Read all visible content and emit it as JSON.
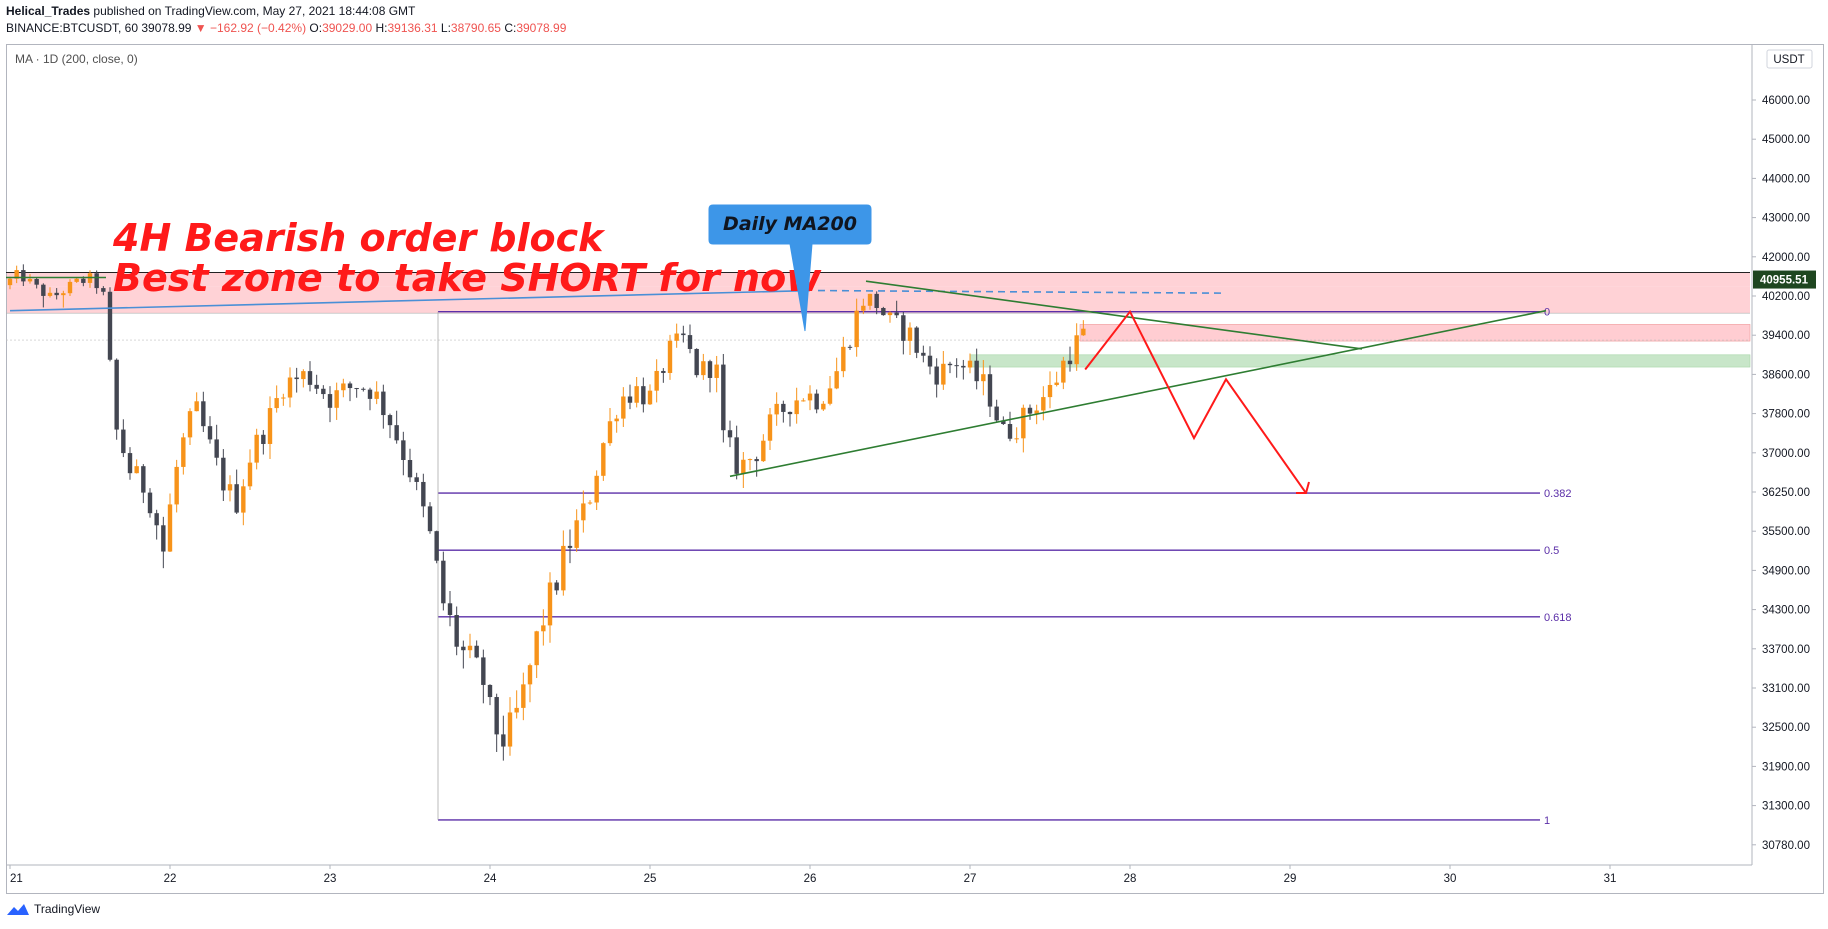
{
  "header": {
    "author": "Helical_Trades",
    "published_text": " published on TradingView.com, May 27, 2021 18:44:08 GMT",
    "symbol": "BINANCE:BTCUSDT, 60",
    "last": "39078.99",
    "change": "▼ −162.92 (−0.42%)",
    "o_label": "O:",
    "o_value": "39029.00",
    "h_label": "H:",
    "h_value": "39136.31",
    "l_label": "L:",
    "l_value": "38790.65",
    "c_label": "C:",
    "c_value": "39078.99"
  },
  "indicator_legend": "MA · 1D (200, close, 0)",
  "currency_badge": "USDT",
  "footer": {
    "brand": "TradingView"
  },
  "colors": {
    "up": "#f7931a",
    "down": "#434651",
    "fib": "#5b2fa8",
    "triangle": "#2e7d32",
    "ma": "#4a8fd6",
    "zone": "#ffcdd2",
    "zone_green": "#c8e6c9",
    "projection": "#ff1a1a",
    "price_badge": "#1e4620"
  },
  "annotations": {
    "line1": "4H Bearish order block",
    "line2": "Best zone to take SHORT for now",
    "callout": "Daily MA200"
  },
  "chart_data": {
    "type": "candlestick",
    "symbol": "BINANCE:BTCUSDT",
    "interval": "60",
    "x_ticks": [
      "21",
      "22",
      "23",
      "24",
      "25",
      "26",
      "27",
      "28",
      "29",
      "30",
      "31"
    ],
    "y_ticks": [
      "46000.00",
      "45000.00",
      "44000.00",
      "43000.00",
      "42000.00",
      "40200.00",
      "39400.00",
      "38600.00",
      "37800.00",
      "37000.00",
      "36250.00",
      "35500.00",
      "34900.00",
      "34300.00",
      "33700.00",
      "33100.00",
      "32500.00",
      "31900.00",
      "31300.00",
      "30780.00"
    ],
    "y_tick_values": [
      46000,
      45000,
      44000,
      43000,
      42000,
      40200,
      39400,
      38600,
      37800,
      37000,
      36250,
      35500,
      34900,
      34300,
      33700,
      33100,
      32500,
      31900,
      31300,
      30780
    ],
    "current_price": "40955.51",
    "current_price_value": 40955.51,
    "fib_levels": [
      {
        "label": "0",
        "price": 39880
      },
      {
        "label": "0.382",
        "price": 36230
      },
      {
        "label": "0.5",
        "price": 35210
      },
      {
        "label": "0.618",
        "price": 34190
      },
      {
        "label": "1",
        "price": 31110
      }
    ],
    "close_path": [
      [
        21.0,
        40700
      ],
      [
        21.1,
        41200
      ],
      [
        21.2,
        40600
      ],
      [
        21.3,
        40100
      ],
      [
        21.45,
        40800
      ],
      [
        21.55,
        41000
      ],
      [
        21.62,
        40400
      ],
      [
        21.7,
        37500
      ],
      [
        21.8,
        36600
      ],
      [
        21.9,
        36300
      ],
      [
        22.0,
        35200
      ],
      [
        22.1,
        37000
      ],
      [
        22.2,
        37900
      ],
      [
        22.35,
        36600
      ],
      [
        22.45,
        36000
      ],
      [
        22.55,
        37000
      ],
      [
        22.65,
        37600
      ],
      [
        22.75,
        38400
      ],
      [
        22.9,
        38600
      ],
      [
        23.05,
        38100
      ],
      [
        23.2,
        38400
      ],
      [
        23.3,
        38300
      ],
      [
        23.4,
        37800
      ],
      [
        23.55,
        36600
      ],
      [
        23.65,
        35600
      ],
      [
        23.75,
        34400
      ],
      [
        23.85,
        33700
      ],
      [
        23.92,
        33500
      ],
      [
        24.0,
        33200
      ],
      [
        24.05,
        32600
      ],
      [
        24.12,
        32300
      ],
      [
        24.18,
        32500
      ],
      [
        24.25,
        33000
      ],
      [
        24.35,
        34000
      ],
      [
        24.45,
        34700
      ],
      [
        24.55,
        35400
      ],
      [
        24.65,
        36000
      ],
      [
        24.75,
        37200
      ],
      [
        24.85,
        38100
      ],
      [
        24.95,
        38300
      ],
      [
        25.05,
        38100
      ],
      [
        25.15,
        39000
      ],
      [
        25.25,
        39300
      ],
      [
        25.35,
        38600
      ],
      [
        25.45,
        38900
      ],
      [
        25.5,
        37300
      ],
      [
        25.6,
        36700
      ],
      [
        25.7,
        37000
      ],
      [
        25.8,
        37600
      ],
      [
        25.9,
        38000
      ],
      [
        26.0,
        38200
      ],
      [
        26.1,
        38100
      ],
      [
        26.2,
        38600
      ],
      [
        26.3,
        39500
      ],
      [
        26.38,
        40200
      ],
      [
        26.45,
        40100
      ],
      [
        26.55,
        39600
      ],
      [
        26.65,
        39500
      ],
      [
        26.75,
        38900
      ],
      [
        26.85,
        38600
      ],
      [
        26.95,
        38900
      ],
      [
        27.05,
        38600
      ],
      [
        27.15,
        38300
      ],
      [
        27.25,
        37400
      ],
      [
        27.35,
        37600
      ],
      [
        27.45,
        38000
      ],
      [
        27.55,
        38300
      ],
      [
        27.65,
        39000
      ],
      [
        27.75,
        39400
      ],
      [
        27.85,
        39800
      ],
      [
        27.9,
        39700
      ],
      [
        27.95,
        39400
      ],
      [
        28.0,
        39080
      ]
    ],
    "triangle_upper": [
      [
        26.35,
        40880
      ],
      [
        29.45,
        39120
      ]
    ],
    "triangle_lower": [
      [
        25.5,
        36550
      ],
      [
        30.6,
        39900
      ]
    ],
    "ma200_line": [
      [
        21.0,
        39900
      ],
      [
        26.0,
        40450
      ]
    ],
    "ma200_projection": [
      [
        26.05,
        40450
      ],
      [
        28.6,
        40330
      ]
    ],
    "order_block_zone": [
      40620,
      41280
    ],
    "inner_red_zone": [
      39280,
      39620
    ],
    "green_zone": [
      38750,
      39000
    ],
    "projection_path": [
      [
        27.72,
        38700
      ],
      [
        28.0,
        39880
      ],
      [
        28.4,
        37300
      ],
      [
        28.6,
        38500
      ],
      [
        29.1,
        36230
      ]
    ]
  }
}
